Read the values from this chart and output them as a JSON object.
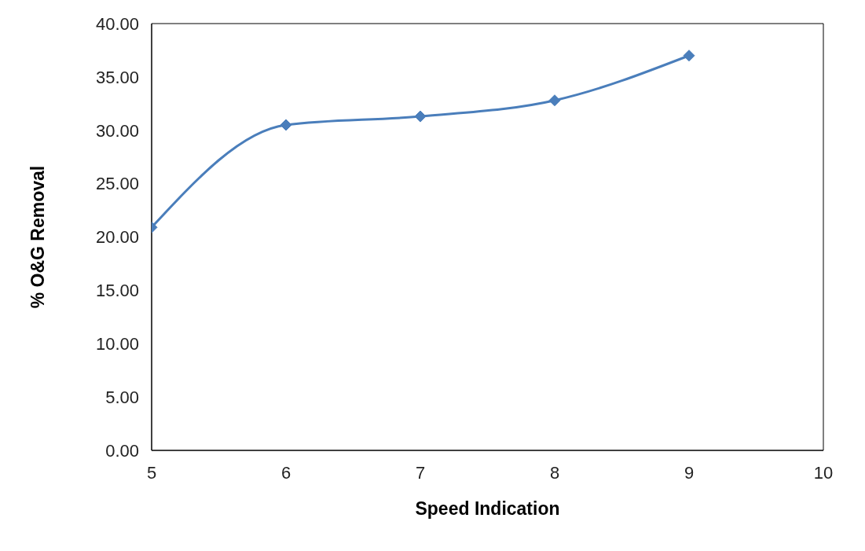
{
  "chart_data": {
    "type": "line",
    "xlabel": "Speed Indication",
    "ylabel": "% O&G Removal",
    "x": [
      5,
      6,
      7,
      8,
      9
    ],
    "series": [
      {
        "color": "#4a7ebb",
        "values": [
          20.9,
          30.5,
          31.3,
          32.8,
          37.0
        ]
      }
    ],
    "xlim": [
      5,
      10
    ],
    "xticks": [
      5,
      6,
      7,
      8,
      9,
      10
    ],
    "ylim": [
      0,
      40
    ],
    "yticks": [
      {
        "value": 0,
        "label": "0.00"
      },
      {
        "value": 5,
        "label": "5.00"
      },
      {
        "value": 10,
        "label": "10.00"
      },
      {
        "value": 15,
        "label": "15.00"
      },
      {
        "value": 20,
        "label": "20.00"
      },
      {
        "value": 25,
        "label": "25.00"
      },
      {
        "value": 30,
        "label": "30.00"
      },
      {
        "value": 35,
        "label": "35.00"
      },
      {
        "value": 40,
        "label": "40.00"
      }
    ],
    "grid": false,
    "legend": false,
    "marker": "diamond",
    "line_style": "solid"
  }
}
